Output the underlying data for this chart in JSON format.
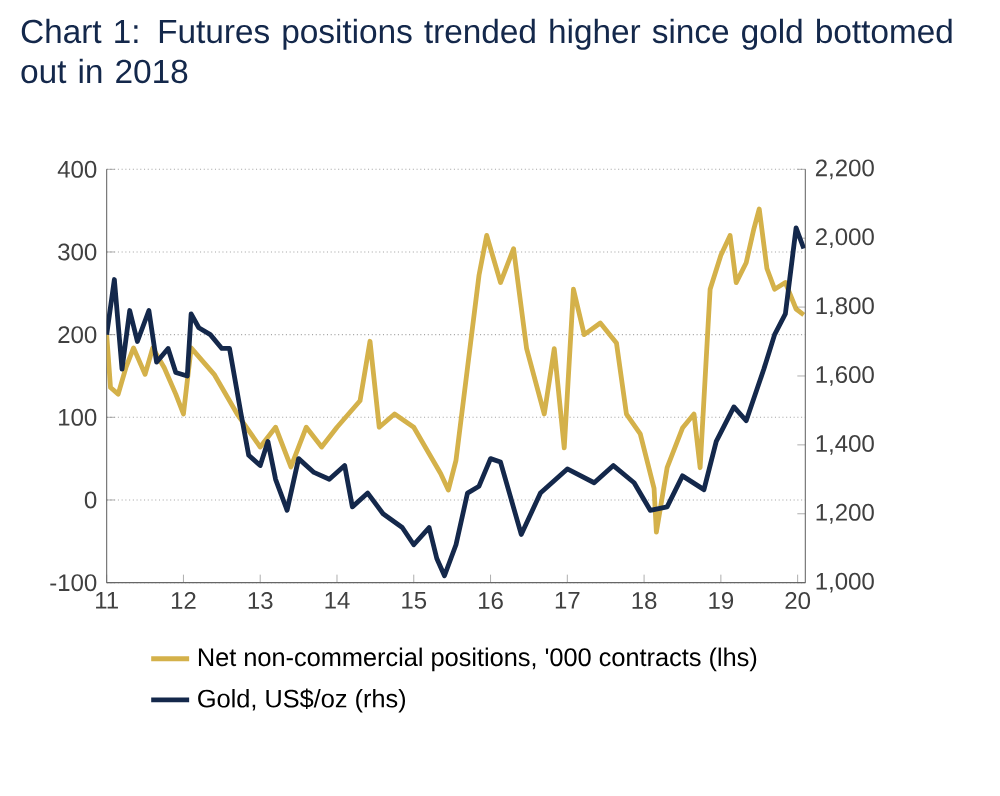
{
  "chart_data": {
    "type": "line",
    "title": "Chart 1: Futures positions trended higher since gold bottomed out in 2018",
    "xlim": [
      11,
      20.1
    ],
    "xticks": [
      11,
      12,
      13,
      14,
      15,
      16,
      17,
      18,
      19,
      20
    ],
    "ylim": [
      -100,
      400
    ],
    "yticks": [
      -100,
      0,
      100,
      200,
      300,
      400
    ],
    "y2lim": [
      1000,
      2200
    ],
    "y2ticks": [
      {
        "value": 1000,
        "label": "1,000"
      },
      {
        "value": 1200,
        "label": "1,200"
      },
      {
        "value": 1400,
        "label": "1,400"
      },
      {
        "value": 1600,
        "label": "1,600"
      },
      {
        "value": 1800,
        "label": "1,800"
      },
      {
        "value": 2000,
        "label": "2,000"
      },
      {
        "value": 2200,
        "label": "2,200"
      }
    ],
    "grid": "y",
    "legend": "bottom",
    "marker": "none",
    "line_style": "solid",
    "series": [
      {
        "name": "Net non-commercial positions, '000 contracts (lhs)",
        "color": "#d4b14a",
        "axis": "y",
        "x": [
          11.0,
          11.05,
          11.15,
          11.25,
          11.35,
          11.5,
          11.6,
          11.75,
          11.9,
          12.0,
          12.1,
          12.25,
          12.4,
          12.7,
          13.0,
          13.2,
          13.4,
          13.6,
          13.8,
          14.0,
          14.3,
          14.43,
          14.55,
          14.75,
          15.0,
          15.2,
          15.35,
          15.45,
          15.55,
          15.7,
          15.85,
          15.95,
          16.13,
          16.3,
          16.47,
          16.7,
          16.83,
          16.96,
          17.08,
          17.22,
          17.43,
          17.64,
          17.77,
          17.95,
          18.13,
          18.16,
          18.3,
          18.5,
          18.65,
          18.73,
          18.86,
          19.0,
          19.12,
          19.2,
          19.33,
          19.43,
          19.5,
          19.6,
          19.7,
          19.84,
          19.98,
          20.08
        ],
        "values": [
          200,
          136,
          128,
          160,
          184,
          152,
          184,
          160,
          128,
          104,
          184,
          168,
          152,
          104,
          64,
          88,
          40,
          88,
          64,
          88,
          120,
          192,
          88,
          104,
          88,
          56,
          32,
          12,
          48,
          160,
          272,
          320,
          263,
          304,
          183,
          104,
          183,
          63,
          255,
          200,
          214,
          190,
          104,
          80,
          14,
          -39,
          39,
          87,
          104,
          39,
          255,
          296,
          320,
          263,
          287,
          328,
          352,
          280,
          255,
          263,
          231,
          224
        ]
      },
      {
        "name": "Gold, US$/oz (rhs)",
        "color": "#14284b",
        "axis": "y2",
        "x": [
          11.0,
          11.1,
          11.2,
          11.3,
          11.4,
          11.55,
          11.65,
          11.8,
          11.9,
          12.05,
          12.1,
          12.2,
          12.35,
          12.5,
          12.6,
          12.75,
          12.85,
          13.0,
          13.1,
          13.2,
          13.35,
          13.5,
          13.7,
          13.9,
          14.1,
          14.2,
          14.4,
          14.6,
          14.85,
          15.0,
          15.2,
          15.3,
          15.4,
          15.55,
          15.7,
          15.85,
          16.0,
          16.13,
          16.4,
          16.65,
          17.0,
          17.35,
          17.6,
          17.87,
          18.08,
          18.3,
          18.5,
          18.78,
          18.94,
          19.17,
          19.33,
          19.56,
          19.7,
          19.84,
          19.98,
          20.08
        ],
        "values": [
          1720,
          1880,
          1620,
          1790,
          1700,
          1790,
          1640,
          1680,
          1610,
          1600,
          1780,
          1740,
          1720,
          1680,
          1680,
          1490,
          1370,
          1340,
          1410,
          1300,
          1210,
          1360,
          1320,
          1300,
          1340,
          1220,
          1260,
          1200,
          1160,
          1110,
          1160,
          1070,
          1020,
          1110,
          1260,
          1280,
          1360,
          1350,
          1140,
          1260,
          1330,
          1290,
          1340,
          1290,
          1210,
          1220,
          1310,
          1270,
          1410,
          1510,
          1470,
          1620,
          1720,
          1780,
          2030,
          1970
        ]
      }
    ]
  }
}
